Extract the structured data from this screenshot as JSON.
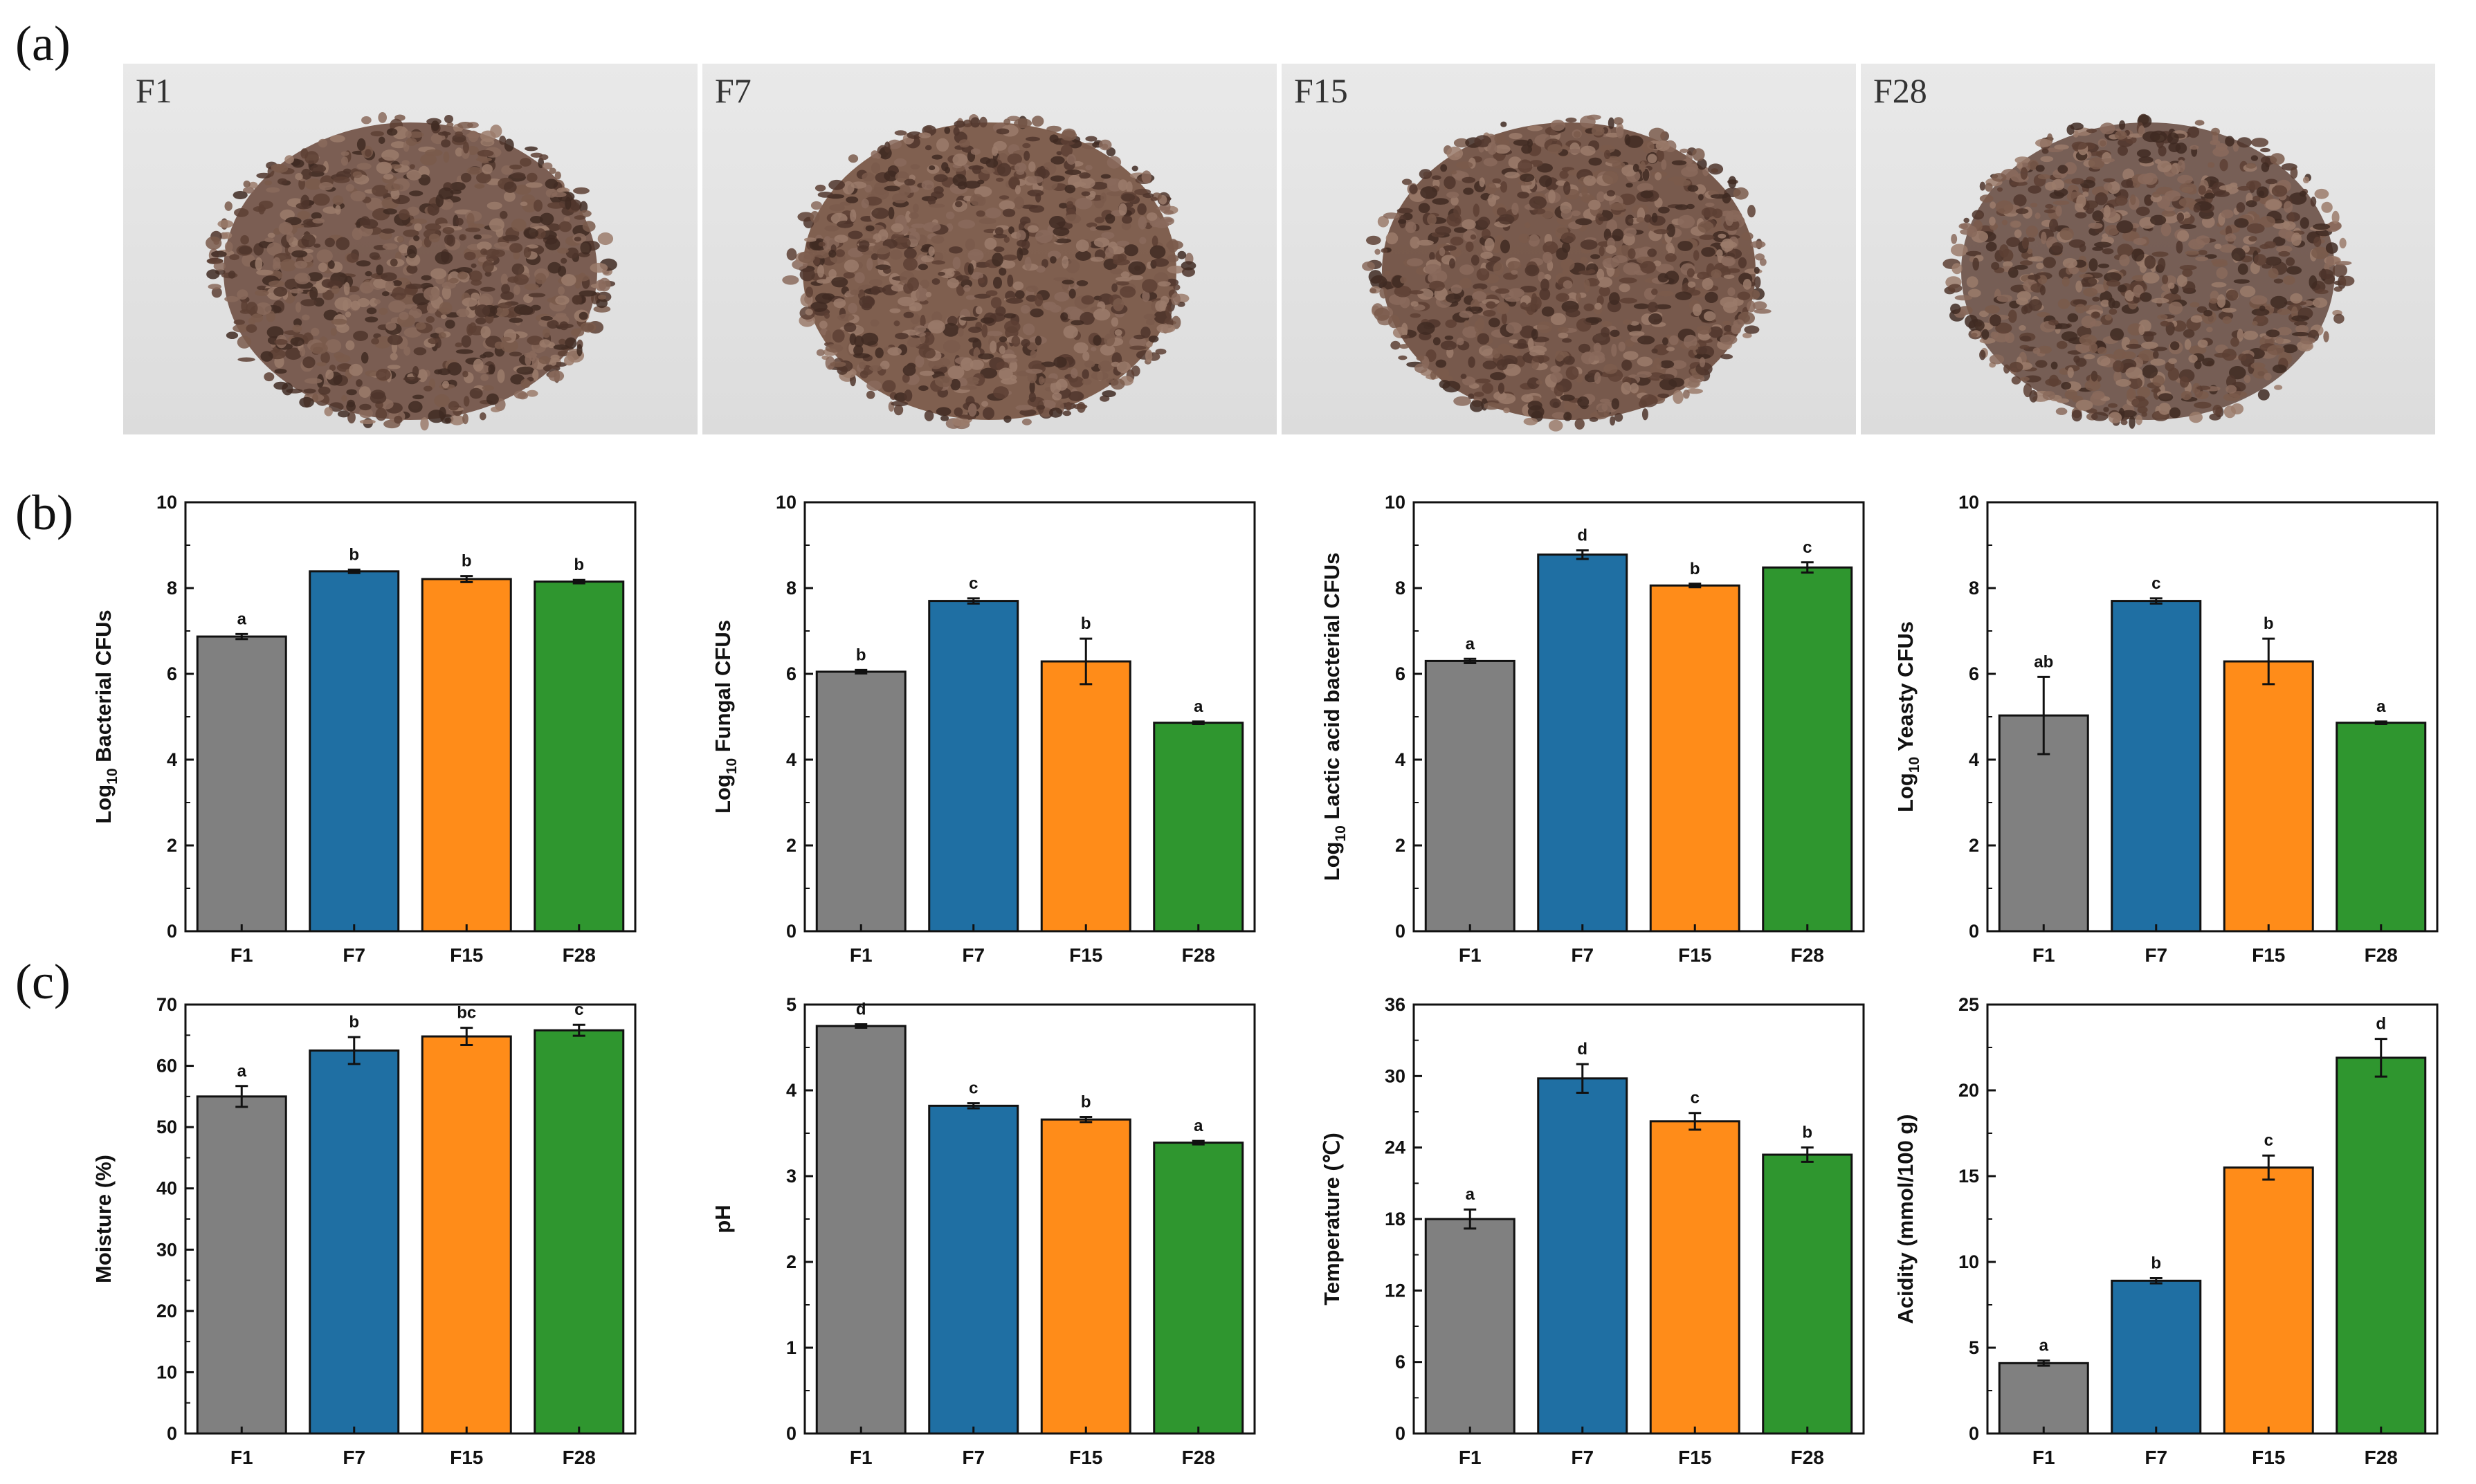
{
  "panel_labels": {
    "a": "(a)",
    "b": "(b)",
    "c": "(c)"
  },
  "photos": [
    {
      "label": "F1",
      "color": "#6f4f42"
    },
    {
      "label": "F7",
      "color": "#74513f"
    },
    {
      "label": "F15",
      "color": "#6b4a3c"
    },
    {
      "label": "F28",
      "color": "#6a5046"
    }
  ],
  "bar_colors": [
    "#808080",
    "#1f6fa3",
    "#ff8c19",
    "#2f962f"
  ],
  "chart_data": [
    {
      "type": "bar",
      "id": "bacterial",
      "title": "",
      "ylabel_prefix": "Log",
      "ylabel_sub": "10",
      "ylabel_rest": " Bacterial CFUs",
      "xlabel": "",
      "categories": [
        "F1",
        "F7",
        "F15",
        "F28"
      ],
      "values": [
        6.87,
        8.39,
        8.21,
        8.15
      ],
      "errors": [
        0.06,
        0.04,
        0.07,
        0.04
      ],
      "letters": [
        "a",
        "b",
        "b",
        "b"
      ],
      "ylim": [
        0,
        10
      ],
      "ticks": [
        0,
        2,
        4,
        6,
        8,
        10
      ]
    },
    {
      "type": "bar",
      "id": "fungal",
      "title": "",
      "ylabel_prefix": "Log",
      "ylabel_sub": "10",
      "ylabel_rest": " Fungal CFUs",
      "xlabel": "",
      "categories": [
        "F1",
        "F7",
        "F15",
        "F28"
      ],
      "values": [
        6.05,
        7.7,
        6.29,
        4.86
      ],
      "errors": [
        0.04,
        0.06,
        0.53,
        0.03
      ],
      "letters": [
        "b",
        "c",
        "b",
        "a"
      ],
      "ylim": [
        0,
        10
      ],
      "ticks": [
        0,
        2,
        4,
        6,
        8,
        10
      ]
    },
    {
      "type": "bar",
      "id": "lab",
      "title": "",
      "ylabel_prefix": "Log",
      "ylabel_sub": "10",
      "ylabel_rest": " Lactic acid bacterial CFUs",
      "xlabel": "",
      "categories": [
        "F1",
        "F7",
        "F15",
        "F28"
      ],
      "values": [
        6.3,
        8.78,
        8.06,
        8.48
      ],
      "errors": [
        0.05,
        0.1,
        0.04,
        0.12
      ],
      "letters": [
        "a",
        "d",
        "b",
        "c"
      ],
      "ylim": [
        0,
        10
      ],
      "ticks": [
        0,
        2,
        4,
        6,
        8,
        10
      ]
    },
    {
      "type": "bar",
      "id": "yeast",
      "title": "",
      "ylabel_prefix": "Log",
      "ylabel_sub": "10",
      "ylabel_rest": " Yeasty CFUs",
      "xlabel": "",
      "categories": [
        "F1",
        "F7",
        "F15",
        "F28"
      ],
      "values": [
        5.03,
        7.7,
        6.29,
        4.86
      ],
      "errors": [
        0.9,
        0.06,
        0.53,
        0.03
      ],
      "letters": [
        "ab",
        "c",
        "b",
        "a"
      ],
      "ylim": [
        0,
        10
      ],
      "ticks": [
        0,
        2,
        4,
        6,
        8,
        10
      ]
    },
    {
      "type": "bar",
      "id": "moisture",
      "title": "",
      "ylabel_prefix": "Moisture (%)",
      "ylabel_sub": "",
      "ylabel_rest": "",
      "xlabel": "",
      "categories": [
        "F1",
        "F7",
        "F15",
        "F28"
      ],
      "values": [
        55.0,
        62.5,
        64.8,
        65.8
      ],
      "errors": [
        1.7,
        2.2,
        1.4,
        0.9
      ],
      "letters": [
        "a",
        "b",
        "bc",
        "c"
      ],
      "ylim": [
        0,
        70
      ],
      "ticks": [
        0,
        10,
        20,
        30,
        40,
        50,
        60,
        70
      ]
    },
    {
      "type": "bar",
      "id": "ph",
      "title": "",
      "ylabel_prefix": "pH",
      "ylabel_sub": "",
      "ylabel_rest": "",
      "xlabel": "",
      "categories": [
        "F1",
        "F7",
        "F15",
        "F28"
      ],
      "values": [
        4.75,
        3.82,
        3.66,
        3.39
      ],
      "errors": [
        0.02,
        0.03,
        0.03,
        0.02
      ],
      "letters": [
        "d",
        "c",
        "b",
        "a"
      ],
      "ylim": [
        0,
        5
      ],
      "ticks": [
        0,
        1,
        2,
        3,
        4,
        5
      ]
    },
    {
      "type": "bar",
      "id": "temperature",
      "title": "",
      "ylabel_prefix": "Temperature (℃)",
      "ylabel_sub": "",
      "ylabel_rest": "",
      "xlabel": "",
      "categories": [
        "F1",
        "F7",
        "F15",
        "F28"
      ],
      "values": [
        18.0,
        29.8,
        26.2,
        23.4
      ],
      "errors": [
        0.8,
        1.2,
        0.7,
        0.6
      ],
      "letters": [
        "a",
        "d",
        "c",
        "b"
      ],
      "ylim": [
        0,
        36
      ],
      "ticks": [
        0,
        6,
        12,
        18,
        24,
        30,
        36
      ]
    },
    {
      "type": "bar",
      "id": "acidity",
      "title": "",
      "ylabel_prefix": "Acidity (mmol/100 g)",
      "ylabel_sub": "",
      "ylabel_rest": "",
      "xlabel": "",
      "categories": [
        "F1",
        "F7",
        "F15",
        "F28"
      ],
      "values": [
        4.1,
        8.9,
        15.5,
        21.9
      ],
      "errors": [
        0.15,
        0.15,
        0.7,
        1.1
      ],
      "letters": [
        "a",
        "b",
        "c",
        "d"
      ],
      "ylim": [
        0,
        25
      ],
      "ticks": [
        0,
        5,
        10,
        15,
        20,
        25
      ]
    }
  ]
}
